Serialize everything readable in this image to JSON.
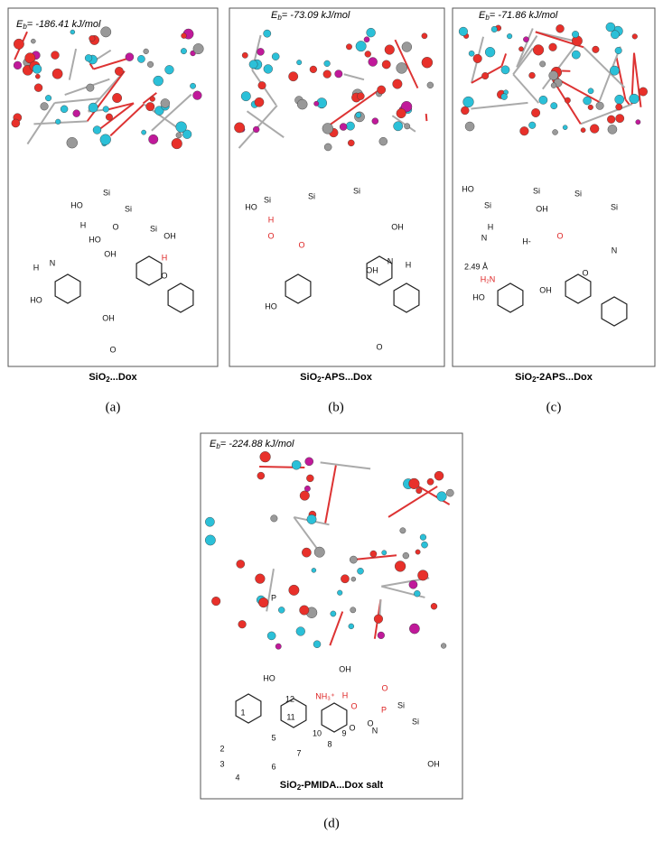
{
  "panels": [
    {
      "energy": {
        "symbol": "E",
        "sub": "b",
        "value": "= -186.41 kJ/mol"
      },
      "caption": {
        "main": "SiO",
        "sub": "2",
        "rest": "...Dox"
      },
      "letter": "(a)",
      "labels": [
        "HO",
        "Si",
        "Si",
        "Si",
        "O",
        "OH",
        "H",
        "N",
        "H",
        "HO",
        "OH",
        "O",
        "HO",
        "OH",
        "O",
        "H"
      ]
    },
    {
      "energy": {
        "symbol": "E",
        "sub": "b",
        "value": "= -73.09 kJ/mol"
      },
      "caption": {
        "main": "SiO",
        "sub": "2",
        "rest": "-APS...Dox"
      },
      "letter": "(b)",
      "labels": [
        "HO",
        "Si",
        "Si",
        "Si",
        "O",
        "H",
        "O",
        "N",
        "H",
        "OH",
        "OH",
        "HO",
        "O"
      ]
    },
    {
      "energy": {
        "symbol": "E",
        "sub": "b",
        "value": "= -71.86 kJ/mol"
      },
      "caption": {
        "main": "SiO",
        "sub": "2",
        "rest": "-2APS...Dox"
      },
      "letter": "(c)",
      "labels": [
        "HO",
        "Si",
        "Si",
        "Si",
        "Si",
        "OH",
        "N",
        "H",
        "H-",
        "O",
        "N",
        "2.49 Å",
        "H₂N",
        "HO",
        "OH",
        "O"
      ]
    },
    {
      "energy": {
        "symbol": "E",
        "sub": "b",
        "value": "= -224.88 kJ/mol"
      },
      "caption": {
        "main": "SiO",
        "sub": "2",
        "rest": "-PMIDA...Dox salt"
      },
      "letter": "(d)",
      "labels": [
        "P",
        "O",
        "H",
        "NH₃⁺",
        "O",
        "Si",
        "P",
        "O",
        "Si",
        "HO",
        "OH",
        "O",
        "N",
        "OH",
        "12",
        "11",
        "10",
        "1",
        "2",
        "3",
        "4",
        "5",
        "6",
        "7",
        "8",
        "9"
      ]
    }
  ]
}
